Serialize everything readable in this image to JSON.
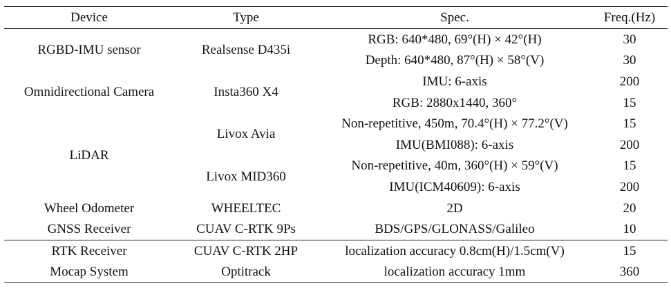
{
  "table": {
    "headers": [
      "Device",
      "Type",
      "Spec.",
      "Freq.(Hz)"
    ],
    "rows": {
      "rgbd": {
        "device": "RGBD-IMU sensor",
        "type": "Realsense D435i",
        "specs": [
          {
            "spec": "RGB: 640*480, 69°(H) × 42°(H)",
            "freq": "30"
          },
          {
            "spec": "Depth: 640*480, 87°(H) × 58°(V)",
            "freq": "30"
          },
          {
            "spec": "IMU: 6-axis",
            "freq": "200"
          }
        ]
      },
      "omni": {
        "device": "Omnidirectional Camera",
        "type": "Insta360 X4",
        "specs": [
          {
            "spec": "RGB: 2880x1440, 360°",
            "freq": "15"
          }
        ]
      },
      "lidar": {
        "device": "LiDAR",
        "types": [
          {
            "type": "Livox Avia",
            "specs": [
              {
                "spec": "Non-repetitive, 450m, 70.4°(H) × 77.2°(V)",
                "freq": "15"
              },
              {
                "spec": "IMU(BMI088): 6-axis",
                "freq": "200"
              }
            ]
          },
          {
            "type": "Livox MID360",
            "specs": [
              {
                "spec": "Non-repetitive, 40m, 360°(H) × 59°(V)",
                "freq": "15"
              },
              {
                "spec": "IMU(ICM40609): 6-axis",
                "freq": "200"
              }
            ]
          }
        ]
      },
      "wheel": {
        "device": "Wheel Odometer",
        "type": "WHEELTEC",
        "spec": "2D",
        "freq": "20"
      },
      "gnss": {
        "device": "GNSS Receiver",
        "type": "CUAV C-RTK 9Ps",
        "spec": "BDS/GPS/GLONASS/Galileo",
        "freq": "10"
      },
      "rtk": {
        "device": "RTK Receiver",
        "type": "CUAV C-RTK 2HP",
        "spec": "localization accuracy 0.8cm(H)/1.5cm(V)",
        "freq": "15"
      },
      "mocap": {
        "device": "Mocap System",
        "type": "Optitrack",
        "spec": "localization accuracy 1mm",
        "freq": "360"
      }
    }
  }
}
